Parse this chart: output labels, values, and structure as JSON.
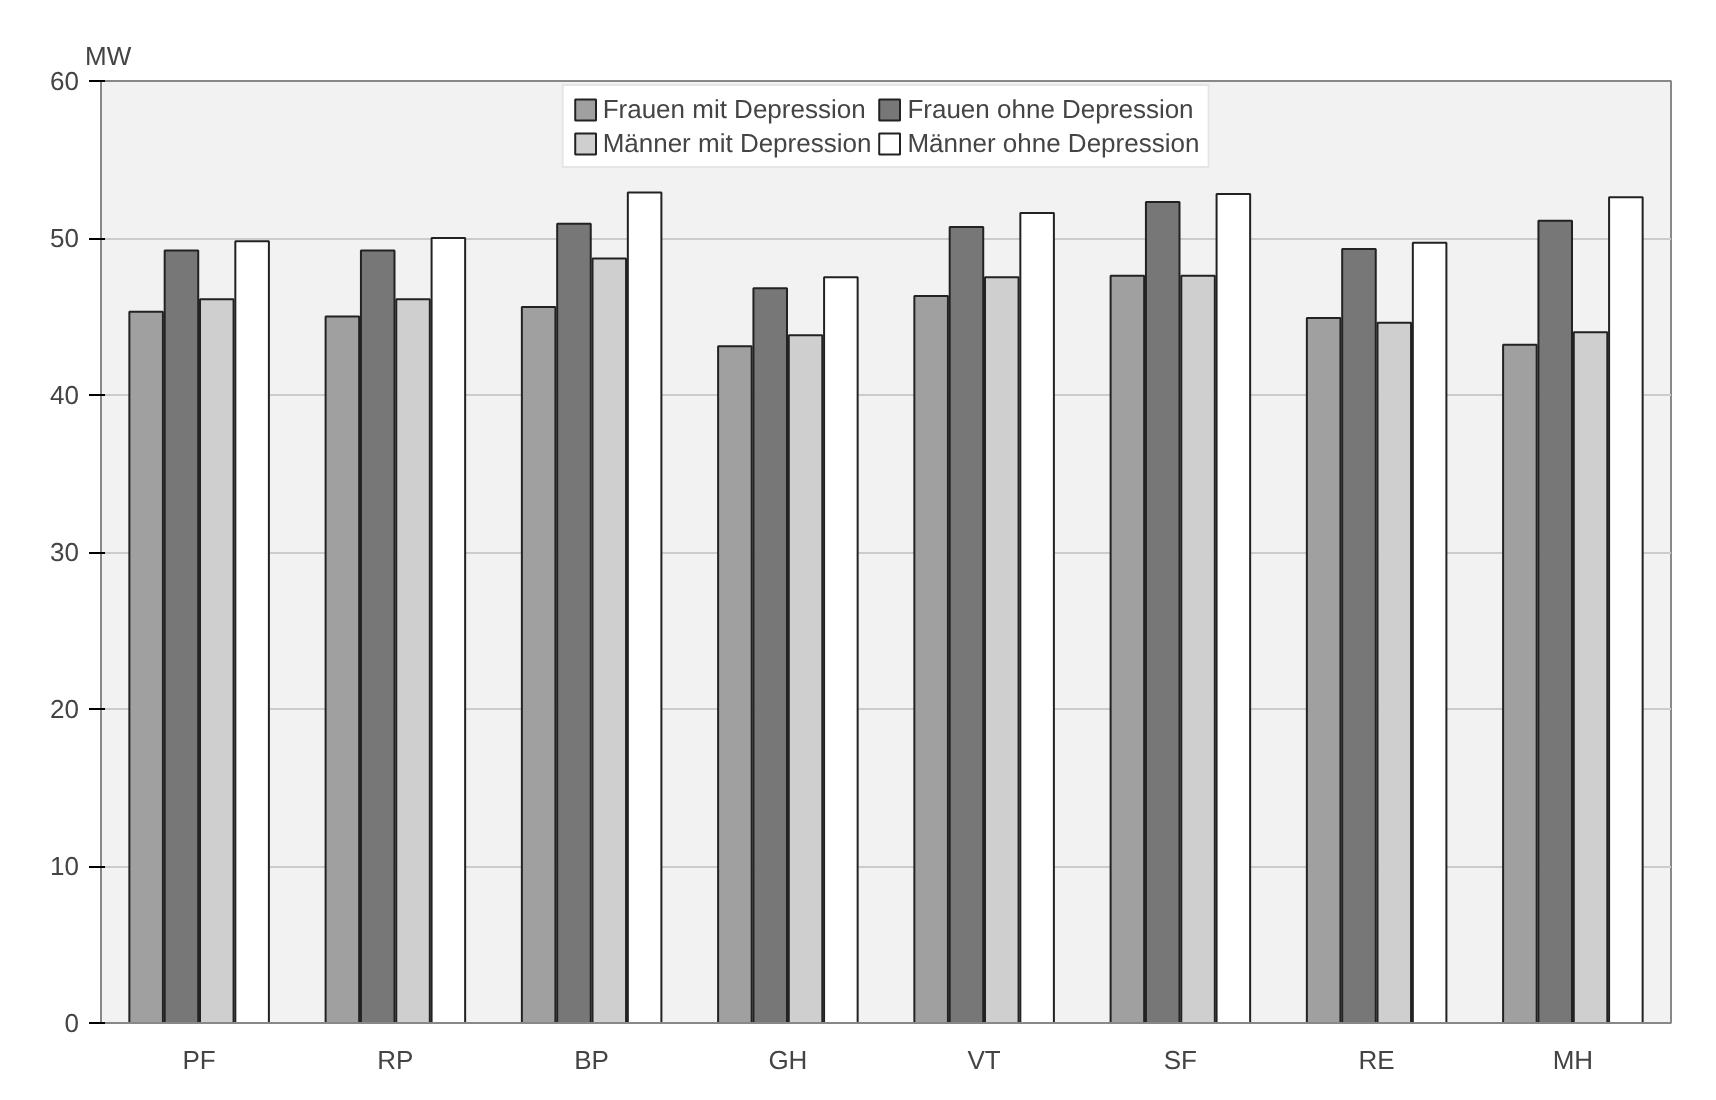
{
  "chart_data": {
    "type": "bar",
    "ylabel": "MW",
    "categories": [
      "PF",
      "RP",
      "BP",
      "GH",
      "VT",
      "SF",
      "RE",
      "MH"
    ],
    "series": [
      {
        "name": "Frauen mit Depression",
        "color": "#a0a0a0",
        "values": [
          45.3,
          45.0,
          45.6,
          43.1,
          46.3,
          47.6,
          44.9,
          43.2
        ]
      },
      {
        "name": "Frauen ohne Depression",
        "color": "#777777",
        "values": [
          49.2,
          49.2,
          50.9,
          46.8,
          50.7,
          52.3,
          49.3,
          51.1
        ]
      },
      {
        "name": "Männer mit Depression",
        "color": "#cfcfcf",
        "values": [
          46.1,
          46.1,
          48.7,
          43.8,
          47.5,
          47.6,
          44.6,
          44.0
        ]
      },
      {
        "name": "Männer ohne Depression",
        "color": "#ffffff",
        "values": [
          49.8,
          50.0,
          52.9,
          47.5,
          51.6,
          52.8,
          49.7,
          52.6
        ]
      }
    ],
    "ylim": [
      0,
      60
    ],
    "yticks": [
      0,
      10,
      20,
      30,
      40,
      50,
      60
    ],
    "grid": "y",
    "legend": "top"
  }
}
